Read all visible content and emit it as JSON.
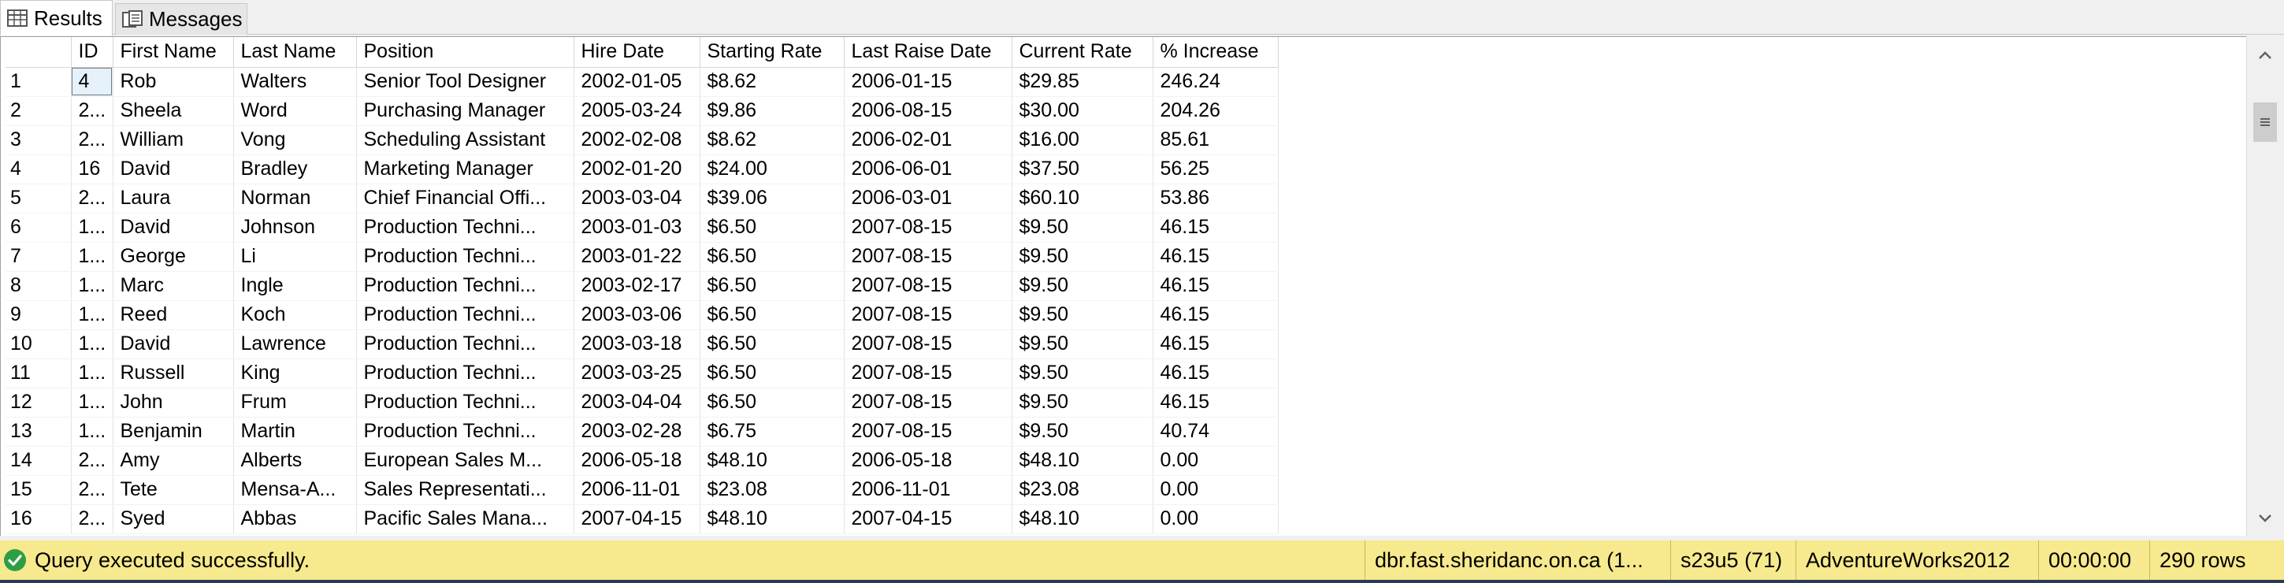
{
  "tabs": [
    {
      "label": "Results",
      "icon": "grid-results-icon",
      "active": true
    },
    {
      "label": "Messages",
      "icon": "messages-icon",
      "active": false
    }
  ],
  "grid": {
    "columns": [
      "",
      "ID",
      "First Name",
      "Last Name",
      "Position",
      "Hire Date",
      "Starting Rate",
      "Last Raise Date",
      "Current Rate",
      "% Increase"
    ],
    "rows": [
      [
        "1",
        "4",
        "Rob",
        "Walters",
        "Senior Tool Designer",
        "2002-01-05",
        "$8.62",
        "2006-01-15",
        "$29.85",
        "246.24"
      ],
      [
        "2",
        "2...",
        "Sheela",
        "Word",
        "Purchasing Manager",
        "2005-03-24",
        "$9.86",
        "2006-08-15",
        "$30.00",
        "204.26"
      ],
      [
        "3",
        "2...",
        "William",
        "Vong",
        "Scheduling Assistant",
        "2002-02-08",
        "$8.62",
        "2006-02-01",
        "$16.00",
        "85.61"
      ],
      [
        "4",
        "16",
        "David",
        "Bradley",
        "Marketing Manager",
        "2002-01-20",
        "$24.00",
        "2006-06-01",
        "$37.50",
        "56.25"
      ],
      [
        "5",
        "2...",
        "Laura",
        "Norman",
        "Chief Financial Offi...",
        "2003-03-04",
        "$39.06",
        "2006-03-01",
        "$60.10",
        "53.86"
      ],
      [
        "6",
        "1...",
        "David",
        "Johnson",
        "Production Techni...",
        "2003-01-03",
        "$6.50",
        "2007-08-15",
        "$9.50",
        "46.15"
      ],
      [
        "7",
        "1...",
        "George",
        "Li",
        "Production Techni...",
        "2003-01-22",
        "$6.50",
        "2007-08-15",
        "$9.50",
        "46.15"
      ],
      [
        "8",
        "1...",
        "Marc",
        "Ingle",
        "Production Techni...",
        "2003-02-17",
        "$6.50",
        "2007-08-15",
        "$9.50",
        "46.15"
      ],
      [
        "9",
        "1...",
        "Reed",
        "Koch",
        "Production Techni...",
        "2003-03-06",
        "$6.50",
        "2007-08-15",
        "$9.50",
        "46.15"
      ],
      [
        "10",
        "1...",
        "David",
        "Lawrence",
        "Production Techni...",
        "2003-03-18",
        "$6.50",
        "2007-08-15",
        "$9.50",
        "46.15"
      ],
      [
        "11",
        "1...",
        "Russell",
        "King",
        "Production Techni...",
        "2003-03-25",
        "$6.50",
        "2007-08-15",
        "$9.50",
        "46.15"
      ],
      [
        "12",
        "1...",
        "John",
        "Frum",
        "Production Techni...",
        "2003-04-04",
        "$6.50",
        "2007-08-15",
        "$9.50",
        "46.15"
      ],
      [
        "13",
        "1...",
        "Benjamin",
        "Martin",
        "Production Techni...",
        "2003-02-28",
        "$6.75",
        "2007-08-15",
        "$9.50",
        "40.74"
      ],
      [
        "14",
        "2...",
        "Amy",
        "Alberts",
        "European Sales M...",
        "2006-05-18",
        "$48.10",
        "2006-05-18",
        "$48.10",
        "0.00"
      ],
      [
        "15",
        "2...",
        "Tete",
        "Mensa-A...",
        "Sales Representati...",
        "2006-11-01",
        "$23.08",
        "2006-11-01",
        "$23.08",
        "0.00"
      ],
      [
        "16",
        "2...",
        "Syed",
        "Abbas",
        "Pacific Sales Mana...",
        "2007-04-15",
        "$48.10",
        "2007-04-15",
        "$48.10",
        "0.00"
      ]
    ],
    "selected_cell": {
      "row": 0,
      "column": 1
    }
  },
  "scrollbar": {
    "up_icon": "chevron-up-icon",
    "down_icon": "chevron-down-icon",
    "thumb_icon": "grip-icon"
  },
  "status": {
    "icon": "check-circle-icon",
    "message": "Query executed successfully.",
    "server": "dbr.fast.sheridanc.on.ca (1...",
    "login": "s23u5 (71)",
    "database": "AdventureWorks2012",
    "elapsed": "00:00:00",
    "rows": "290 rows"
  },
  "colors": {
    "status_bar": "#f7e98d",
    "success_green": "#2e9e44",
    "selection": "#e5f1fb",
    "bottom_strip": "#2b3a55"
  }
}
